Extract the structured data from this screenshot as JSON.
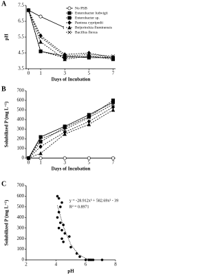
{
  "chart_data": [
    {
      "type": "line",
      "panel_label": "A",
      "ylabel": "pH",
      "xlabel": "Days of Incubation",
      "x": [
        0,
        1,
        3,
        5,
        7
      ],
      "xlim": [
        -0.2,
        7.2
      ],
      "xticks": [
        0,
        1,
        3,
        5,
        7
      ],
      "ylim": [
        3.5,
        7.5
      ],
      "yticks": [
        3.5,
        4.5,
        5.5,
        6.5,
        7.5
      ],
      "legend": "upper right",
      "series": [
        {
          "name": "No PSB",
          "color": "#000000",
          "marker": "circle-open",
          "dash": false,
          "values": [
            7.2,
            6.8,
            6.1,
            6.4,
            6.5
          ]
        },
        {
          "name": "Enterobacter ludwigii",
          "color": "#000000",
          "marker": "square",
          "dash": false,
          "values": [
            7.2,
            4.6,
            4.3,
            4.2,
            4.2
          ]
        },
        {
          "name": "Enterobacter sp.",
          "color": "#000000",
          "marker": "square",
          "dash": true,
          "values": [
            7.2,
            4.6,
            4.2,
            4.3,
            4.1
          ]
        },
        {
          "name": "Pantoea  cypripedii",
          "color": "#000000",
          "marker": "diamond",
          "dash": true,
          "values": [
            7.2,
            5.6,
            4.4,
            4.5,
            4.2
          ]
        },
        {
          "name": "Beijerinckia fluminensis",
          "color": "#000000",
          "marker": "triangle",
          "dash": true,
          "values": [
            7.2,
            5.2,
            4.1,
            4.3,
            4.2
          ]
        },
        {
          "name": "Bacillus flexus",
          "color": "#000000",
          "marker": "cross",
          "dash": true,
          "values": [
            7.2,
            5.5,
            4.3,
            4.4,
            4.3
          ]
        }
      ]
    },
    {
      "type": "line",
      "panel_label": "B",
      "ylabel": "Solubilized P (mg L⁻¹)",
      "xlabel": "Days of Incubation",
      "x": [
        0,
        1,
        3,
        5,
        7
      ],
      "xlim": [
        -0.2,
        7.2
      ],
      "xticks": [
        0,
        1,
        3,
        5,
        7
      ],
      "ylim": [
        0,
        700
      ],
      "yticks": [
        0,
        100,
        200,
        300,
        400,
        500,
        600,
        700
      ],
      "series": [
        {
          "color": "#000000",
          "marker": "circle-open",
          "dash": false,
          "values": [
            0,
            0,
            0,
            0,
            0
          ]
        },
        {
          "color": "#000000",
          "marker": "square",
          "dash": false,
          "values": [
            0,
            220,
            330,
            450,
            580
          ]
        },
        {
          "color": "#000000",
          "marker": "square",
          "dash": true,
          "values": [
            0,
            170,
            320,
            430,
            600
          ]
        },
        {
          "color": "#000000",
          "marker": "diamond",
          "dash": true,
          "values": [
            0,
            120,
            270,
            380,
            530
          ]
        },
        {
          "color": "#000000",
          "marker": "triangle",
          "dash": true,
          "values": [
            0,
            50,
            250,
            350,
            500
          ]
        },
        {
          "color": "#000000",
          "marker": "cross",
          "dash": true,
          "values": [
            0,
            200,
            300,
            420,
            560
          ]
        }
      ]
    },
    {
      "type": "scatter",
      "panel_label": "C",
      "ylabel": "Solubilized P (mg L⁻¹)",
      "xlabel": "pH",
      "xlim": [
        2,
        8
      ],
      "xticks": [
        2,
        4,
        6,
        8
      ],
      "ylim": [
        0,
        700
      ],
      "yticks": [
        0,
        100,
        200,
        300,
        400,
        500,
        600,
        700
      ],
      "color": "#000000",
      "x": [
        4.2,
        4.1,
        4.3,
        4.2,
        4.4,
        4.1,
        4.3,
        4.5,
        4.2,
        4.4,
        4.6,
        4.9,
        4.4,
        5.0,
        4.5,
        5.4,
        5.6,
        6.3,
        6.0,
        6.5,
        6.4,
        7.1,
        6.2
      ],
      "values": [
        580,
        600,
        500,
        450,
        540,
        400,
        350,
        330,
        300,
        280,
        250,
        220,
        200,
        120,
        170,
        60,
        30,
        0,
        0,
        0,
        0,
        0,
        0
      ],
      "trendline": {
        "x": [
          4.1,
          4.5,
          5,
          5.5,
          6,
          6.5
        ],
        "values": [
          514,
          312,
          145,
          53,
          13,
          5
        ]
      },
      "annotations": [
        "y = -28.912x³ + 582.69x² - 3910.8x + 8746",
        "R² = 0.8971"
      ]
    }
  ]
}
